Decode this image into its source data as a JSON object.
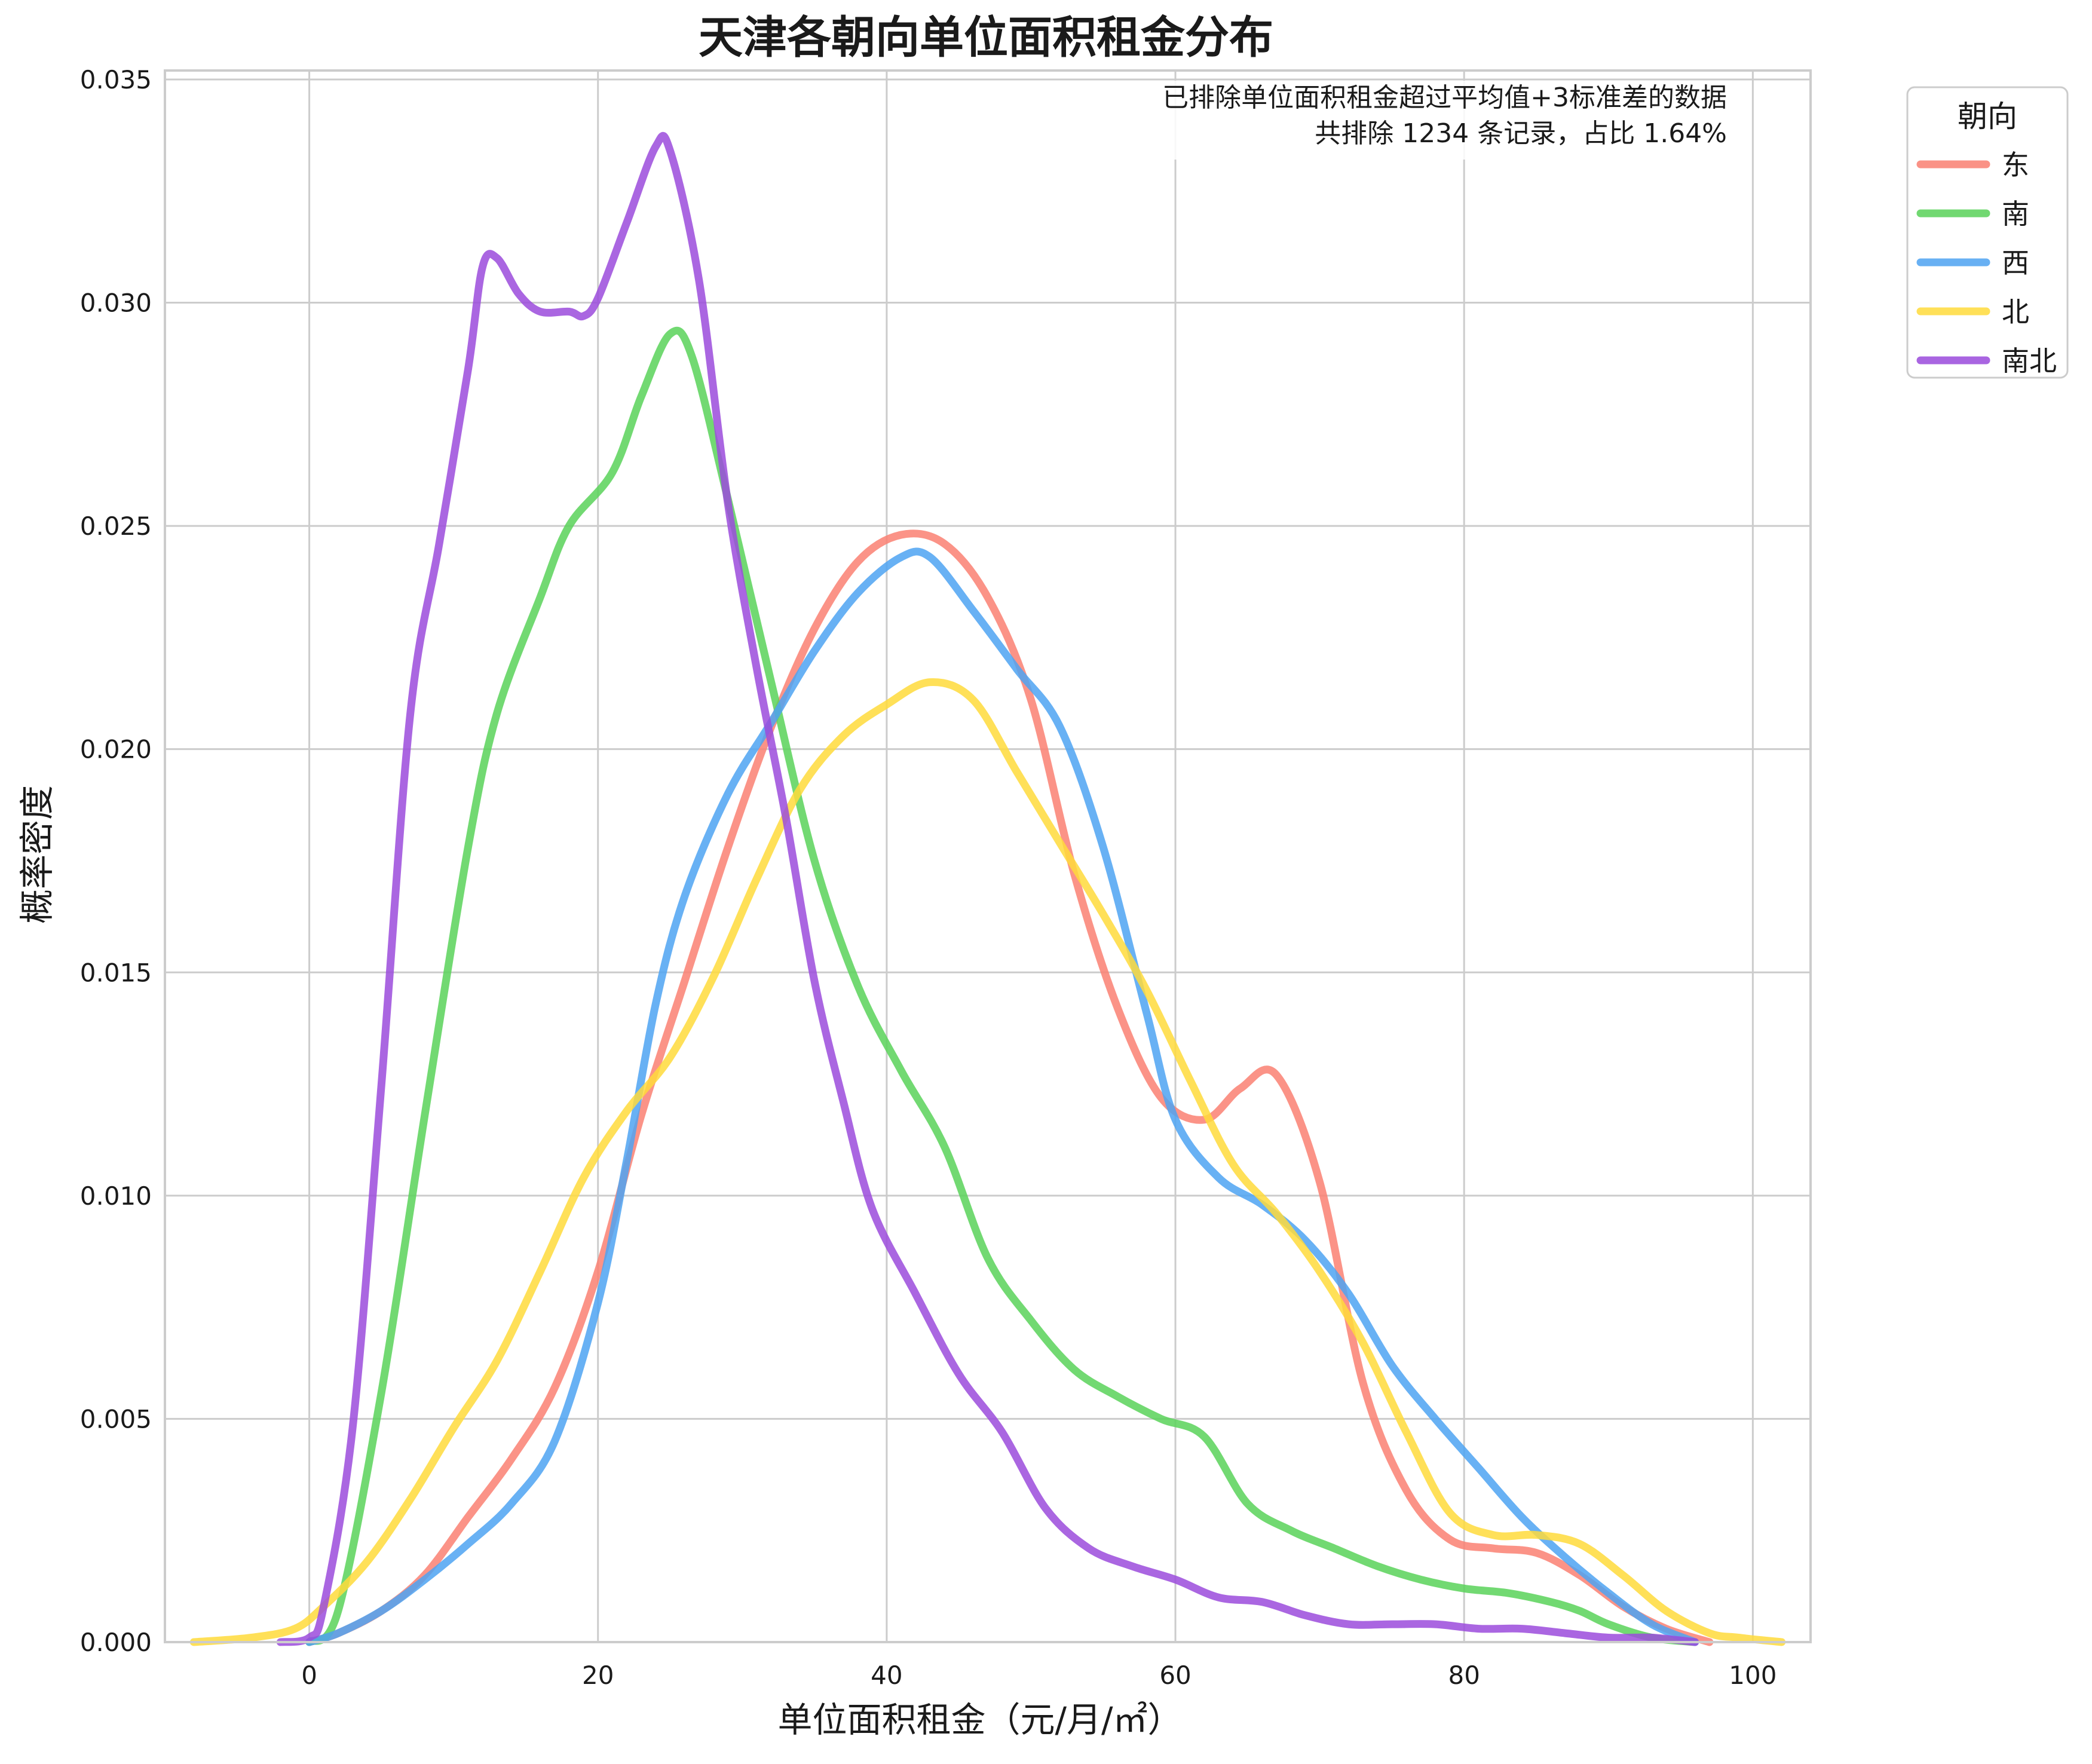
{
  "chart_data": {
    "type": "line",
    "title": "天津各朝向单位面积租金分布",
    "xlabel": "单位面积租金（元/月/㎡）",
    "ylabel": "概率密度",
    "xlim": [
      -10,
      104
    ],
    "ylim": [
      0,
      0.0352
    ],
    "xticks": [
      0,
      20,
      40,
      60,
      80,
      100
    ],
    "xtick_labels": [
      "0",
      "20",
      "40",
      "60",
      "80",
      "100"
    ],
    "yticks": [
      0,
      0.005,
      0.01,
      0.015,
      0.02,
      0.025,
      0.03,
      0.035
    ],
    "ytick_labels": [
      "0.000",
      "0.005",
      "0.010",
      "0.015",
      "0.020",
      "0.025",
      "0.030",
      "0.035"
    ],
    "grid": true,
    "legend": {
      "title": "朝向",
      "placement": "outside top-right"
    },
    "annotation": [
      "已排除单位面积租金超过平均值+3标准差的数据",
      "共排除 1234 条记录，占比 1.64%"
    ],
    "series": [
      {
        "name": "东",
        "color": "#fa8072",
        "points": [
          [
            0,
            0
          ],
          [
            2,
            0.0002
          ],
          [
            5,
            0.0007
          ],
          [
            8,
            0.0015
          ],
          [
            11,
            0.0028
          ],
          [
            14,
            0.0041
          ],
          [
            17,
            0.0057
          ],
          [
            20,
            0.0083
          ],
          [
            23,
            0.0118
          ],
          [
            26,
            0.0148
          ],
          [
            29,
            0.0178
          ],
          [
            32,
            0.0205
          ],
          [
            35,
            0.0227
          ],
          [
            38,
            0.0242
          ],
          [
            41,
            0.0248
          ],
          [
            44,
            0.0246
          ],
          [
            47,
            0.0234
          ],
          [
            50,
            0.0211
          ],
          [
            53,
            0.0172
          ],
          [
            56,
            0.0142
          ],
          [
            59,
            0.0122
          ],
          [
            62,
            0.0117
          ],
          [
            64.5,
            0.0124
          ],
          [
            67,
            0.0127
          ],
          [
            70,
            0.0103
          ],
          [
            73,
            0.0058
          ],
          [
            76,
            0.0034
          ],
          [
            79,
            0.0023
          ],
          [
            82,
            0.0021
          ],
          [
            85,
            0.002
          ],
          [
            88,
            0.0015
          ],
          [
            91,
            0.0008
          ],
          [
            94,
            0.0003
          ],
          [
            97,
            0
          ]
        ]
      },
      {
        "name": "南",
        "color": "#59d259",
        "points": [
          [
            0,
            0
          ],
          [
            2,
            0.0007
          ],
          [
            5,
            0.0056
          ],
          [
            8,
            0.0118
          ],
          [
            11,
            0.0178
          ],
          [
            13,
            0.0208
          ],
          [
            16,
            0.0234
          ],
          [
            18,
            0.025
          ],
          [
            21,
            0.0262
          ],
          [
            23,
            0.0279
          ],
          [
            25,
            0.0293
          ],
          [
            26.5,
            0.0288
          ],
          [
            29,
            0.0256
          ],
          [
            32,
            0.0215
          ],
          [
            35,
            0.0175
          ],
          [
            38,
            0.0147
          ],
          [
            41,
            0.0128
          ],
          [
            44,
            0.0111
          ],
          [
            47,
            0.0086
          ],
          [
            50,
            0.0072
          ],
          [
            53,
            0.0061
          ],
          [
            56,
            0.0055
          ],
          [
            59,
            0.005
          ],
          [
            62,
            0.0046
          ],
          [
            65,
            0.0031
          ],
          [
            68,
            0.0025
          ],
          [
            71,
            0.0021
          ],
          [
            74,
            0.0017
          ],
          [
            77,
            0.0014
          ],
          [
            80,
            0.0012
          ],
          [
            83,
            0.0011
          ],
          [
            86,
            0.0009
          ],
          [
            88,
            0.0007
          ],
          [
            90,
            0.0004
          ],
          [
            93,
            0.0001
          ],
          [
            96,
            0
          ]
        ]
      },
      {
        "name": "西",
        "color": "#4ea3f2",
        "points": [
          [
            0,
            0
          ],
          [
            2,
            0.0002
          ],
          [
            5,
            0.0007
          ],
          [
            8,
            0.0014
          ],
          [
            11,
            0.0022
          ],
          [
            14,
            0.0031
          ],
          [
            17,
            0.0045
          ],
          [
            20,
            0.0076
          ],
          [
            22,
            0.0108
          ],
          [
            24,
            0.0143
          ],
          [
            26,
            0.0167
          ],
          [
            29,
            0.019
          ],
          [
            32,
            0.0206
          ],
          [
            35,
            0.0222
          ],
          [
            38,
            0.0235
          ],
          [
            41,
            0.0243
          ],
          [
            43,
            0.0243
          ],
          [
            46,
            0.0231
          ],
          [
            49,
            0.0218
          ],
          [
            52,
            0.0205
          ],
          [
            55,
            0.0178
          ],
          [
            58,
            0.0141
          ],
          [
            60,
            0.0117
          ],
          [
            63,
            0.0104
          ],
          [
            66,
            0.0098
          ],
          [
            69,
            0.009
          ],
          [
            72,
            0.0078
          ],
          [
            75,
            0.0062
          ],
          [
            78,
            0.005
          ],
          [
            81,
            0.0039
          ],
          [
            84,
            0.0028
          ],
          [
            87,
            0.0019
          ],
          [
            90,
            0.0011
          ],
          [
            93,
            0.0004
          ],
          [
            96,
            0
          ]
        ]
      },
      {
        "name": "北",
        "color": "#ffdb3b",
        "points": [
          [
            -8,
            0
          ],
          [
            -4,
            0.0001
          ],
          [
            -1,
            0.0003
          ],
          [
            1,
            0.0008
          ],
          [
            4,
            0.0018
          ],
          [
            7,
            0.0032
          ],
          [
            10,
            0.0048
          ],
          [
            13,
            0.0063
          ],
          [
            16,
            0.0083
          ],
          [
            19,
            0.0104
          ],
          [
            22,
            0.0119
          ],
          [
            25,
            0.0131
          ],
          [
            28,
            0.0149
          ],
          [
            31,
            0.0171
          ],
          [
            34,
            0.0191
          ],
          [
            37,
            0.0203
          ],
          [
            40,
            0.021
          ],
          [
            43,
            0.0215
          ],
          [
            46,
            0.0211
          ],
          [
            49,
            0.0195
          ],
          [
            52,
            0.0179
          ],
          [
            55,
            0.0163
          ],
          [
            58,
            0.0146
          ],
          [
            61,
            0.0126
          ],
          [
            64,
            0.0107
          ],
          [
            67,
            0.0096
          ],
          [
            70,
            0.0083
          ],
          [
            73,
            0.0067
          ],
          [
            76,
            0.0047
          ],
          [
            79,
            0.0029
          ],
          [
            82,
            0.0024
          ],
          [
            85,
            0.0024
          ],
          [
            88,
            0.0022
          ],
          [
            91,
            0.0015
          ],
          [
            94,
            0.0007
          ],
          [
            97,
            0.0002
          ],
          [
            99,
            0.0001
          ],
          [
            102,
            0
          ]
        ]
      },
      {
        "name": "南北",
        "color": "#9b4bdc",
        "points": [
          [
            -2,
            0
          ],
          [
            0,
            0.0001
          ],
          [
            1,
            0.0008
          ],
          [
            3,
            0.0048
          ],
          [
            5,
            0.0125
          ],
          [
            7,
            0.0208
          ],
          [
            9,
            0.0246
          ],
          [
            11,
            0.0285
          ],
          [
            12,
            0.0308
          ],
          [
            13,
            0.031
          ],
          [
            14.5,
            0.0302
          ],
          [
            16,
            0.0298
          ],
          [
            18,
            0.0298
          ],
          [
            19,
            0.0297
          ],
          [
            20,
            0.0301
          ],
          [
            22,
            0.0318
          ],
          [
            24,
            0.0335
          ],
          [
            25,
            0.0334
          ],
          [
            27,
            0.0305
          ],
          [
            29,
            0.0255
          ],
          [
            31,
            0.0218
          ],
          [
            33,
            0.0185
          ],
          [
            35,
            0.0148
          ],
          [
            37,
            0.0121
          ],
          [
            39,
            0.0097
          ],
          [
            42,
            0.0078
          ],
          [
            45,
            0.006
          ],
          [
            48,
            0.0047
          ],
          [
            51,
            0.003
          ],
          [
            54,
            0.0021
          ],
          [
            57,
            0.0017
          ],
          [
            60,
            0.0014
          ],
          [
            63,
            0.001
          ],
          [
            66,
            0.0009
          ],
          [
            69,
            0.0006
          ],
          [
            72,
            0.0004
          ],
          [
            75,
            0.0004
          ],
          [
            78,
            0.0004
          ],
          [
            81,
            0.0003
          ],
          [
            84,
            0.0003
          ],
          [
            87,
            0.0002
          ],
          [
            90,
            0.0001
          ],
          [
            93,
            0.0001
          ],
          [
            96,
            0
          ]
        ]
      }
    ]
  }
}
